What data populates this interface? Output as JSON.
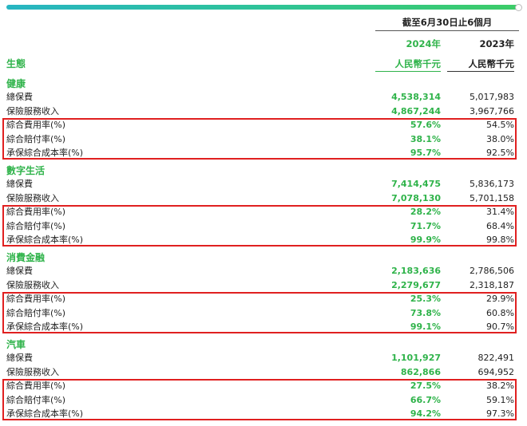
{
  "header": {
    "period": "截至6月30日止6個月",
    "year_2024": "2024年",
    "year_2023": "2023年",
    "unit_2024": "人民幣千元",
    "unit_2023": "人民幣千元",
    "section_label": "生態"
  },
  "segments": [
    {
      "title": "健康",
      "rows": [
        {
          "label": "總保費",
          "v2024": "4,538,314",
          "v2023": "5,017,983"
        },
        {
          "label": "保險服務收入",
          "v2024": "4,867,244",
          "v2023": "3,967,766"
        },
        {
          "label": "綜合費用率(%)",
          "v2024": "57.6%",
          "v2023": "54.5%"
        },
        {
          "label": "綜合賠付率(%)",
          "v2024": "38.1%",
          "v2023": "38.0%"
        },
        {
          "label": "承保綜合成本率(%)",
          "v2024": "95.7%",
          "v2023": "92.5%"
        }
      ]
    },
    {
      "title": "數字生活",
      "rows": [
        {
          "label": "總保費",
          "v2024": "7,414,475",
          "v2023": "5,836,173"
        },
        {
          "label": "保險服務收入",
          "v2024": "7,078,130",
          "v2023": "5,701,158"
        },
        {
          "label": "綜合費用率(%)",
          "v2024": "28.2%",
          "v2023": "31.4%"
        },
        {
          "label": "綜合賠付率(%)",
          "v2024": "71.7%",
          "v2023": "68.4%"
        },
        {
          "label": "承保綜合成本率(%)",
          "v2024": "99.9%",
          "v2023": "99.8%"
        }
      ]
    },
    {
      "title": "消費金融",
      "rows": [
        {
          "label": "總保費",
          "v2024": "2,183,636",
          "v2023": "2,786,506"
        },
        {
          "label": "保險服務收入",
          "v2024": "2,279,677",
          "v2023": "2,318,187"
        },
        {
          "label": "綜合費用率(%)",
          "v2024": "25.3%",
          "v2023": "29.9%"
        },
        {
          "label": "綜合賠付率(%)",
          "v2024": "73.8%",
          "v2023": "60.8%"
        },
        {
          "label": "承保綜合成本率(%)",
          "v2024": "99.1%",
          "v2023": "90.7%"
        }
      ]
    },
    {
      "title": "汽車",
      "rows": [
        {
          "label": "總保費",
          "v2024": "1,101,927",
          "v2023": "822,491"
        },
        {
          "label": "保險服務收入",
          "v2024": "862,866",
          "v2023": "694,952"
        },
        {
          "label": "綜合費用率(%)",
          "v2024": "27.5%",
          "v2023": "38.2%"
        },
        {
          "label": "綜合賠付率(%)",
          "v2024": "66.7%",
          "v2023": "59.1%"
        },
        {
          "label": "承保綜合成本率(%)",
          "v2024": "94.2%",
          "v2023": "97.3%"
        }
      ]
    }
  ],
  "colors": {
    "accent_green": "#2fb34a",
    "highlight_red": "#e02020"
  }
}
